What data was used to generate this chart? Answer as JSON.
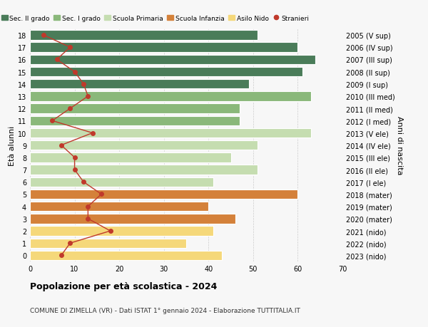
{
  "ages": [
    0,
    1,
    2,
    3,
    4,
    5,
    6,
    7,
    8,
    9,
    10,
    11,
    12,
    13,
    14,
    15,
    16,
    17,
    18
  ],
  "bar_values": [
    43,
    35,
    41,
    46,
    40,
    60,
    41,
    51,
    45,
    51,
    63,
    47,
    47,
    63,
    49,
    61,
    64,
    60,
    51
  ],
  "stranieri": [
    7,
    9,
    18,
    13,
    13,
    16,
    12,
    10,
    10,
    7,
    14,
    5,
    9,
    13,
    12,
    10,
    6,
    9,
    3
  ],
  "right_labels": [
    "2023 (nido)",
    "2022 (nido)",
    "2021 (nido)",
    "2020 (mater)",
    "2019 (mater)",
    "2018 (mater)",
    "2017 (I ele)",
    "2016 (II ele)",
    "2015 (III ele)",
    "2014 (IV ele)",
    "2013 (V ele)",
    "2012 (I med)",
    "2011 (II med)",
    "2010 (III med)",
    "2009 (I sup)",
    "2008 (II sup)",
    "2007 (III sup)",
    "2006 (IV sup)",
    "2005 (V sup)"
  ],
  "bar_color_per_age": [
    "#f5d87a",
    "#f5d87a",
    "#f5d87a",
    "#d4813a",
    "#d4813a",
    "#d4813a",
    "#c5ddb0",
    "#c5ddb0",
    "#c5ddb0",
    "#c5ddb0",
    "#c5ddb0",
    "#8ab87a",
    "#8ab87a",
    "#8ab87a",
    "#4a7c59",
    "#4a7c59",
    "#4a7c59",
    "#4a7c59",
    "#4a7c59"
  ],
  "xlim": [
    0,
    70
  ],
  "ylim": [
    -0.5,
    18.5
  ],
  "ylabel_left": "Età alunni",
  "ylabel_right": "Anni di nascita",
  "title": "Popolazione per età scolastica - 2024",
  "subtitle": "COMUNE DI ZIMELLA (VR) - Dati ISTAT 1° gennaio 2024 - Elaborazione TUTTITALIA.IT",
  "legend_labels": [
    "Sec. II grado",
    "Sec. I grado",
    "Scuola Primaria",
    "Scuola Infanzia",
    "Asilo Nido",
    "Stranieri"
  ],
  "legend_colors": [
    "#4a7c59",
    "#8ab87a",
    "#c5ddb0",
    "#d4813a",
    "#f5d87a",
    "#c0392b"
  ],
  "stranieri_color": "#c0392b",
  "background_color": "#f7f7f7",
  "grid_color": "#cccccc"
}
